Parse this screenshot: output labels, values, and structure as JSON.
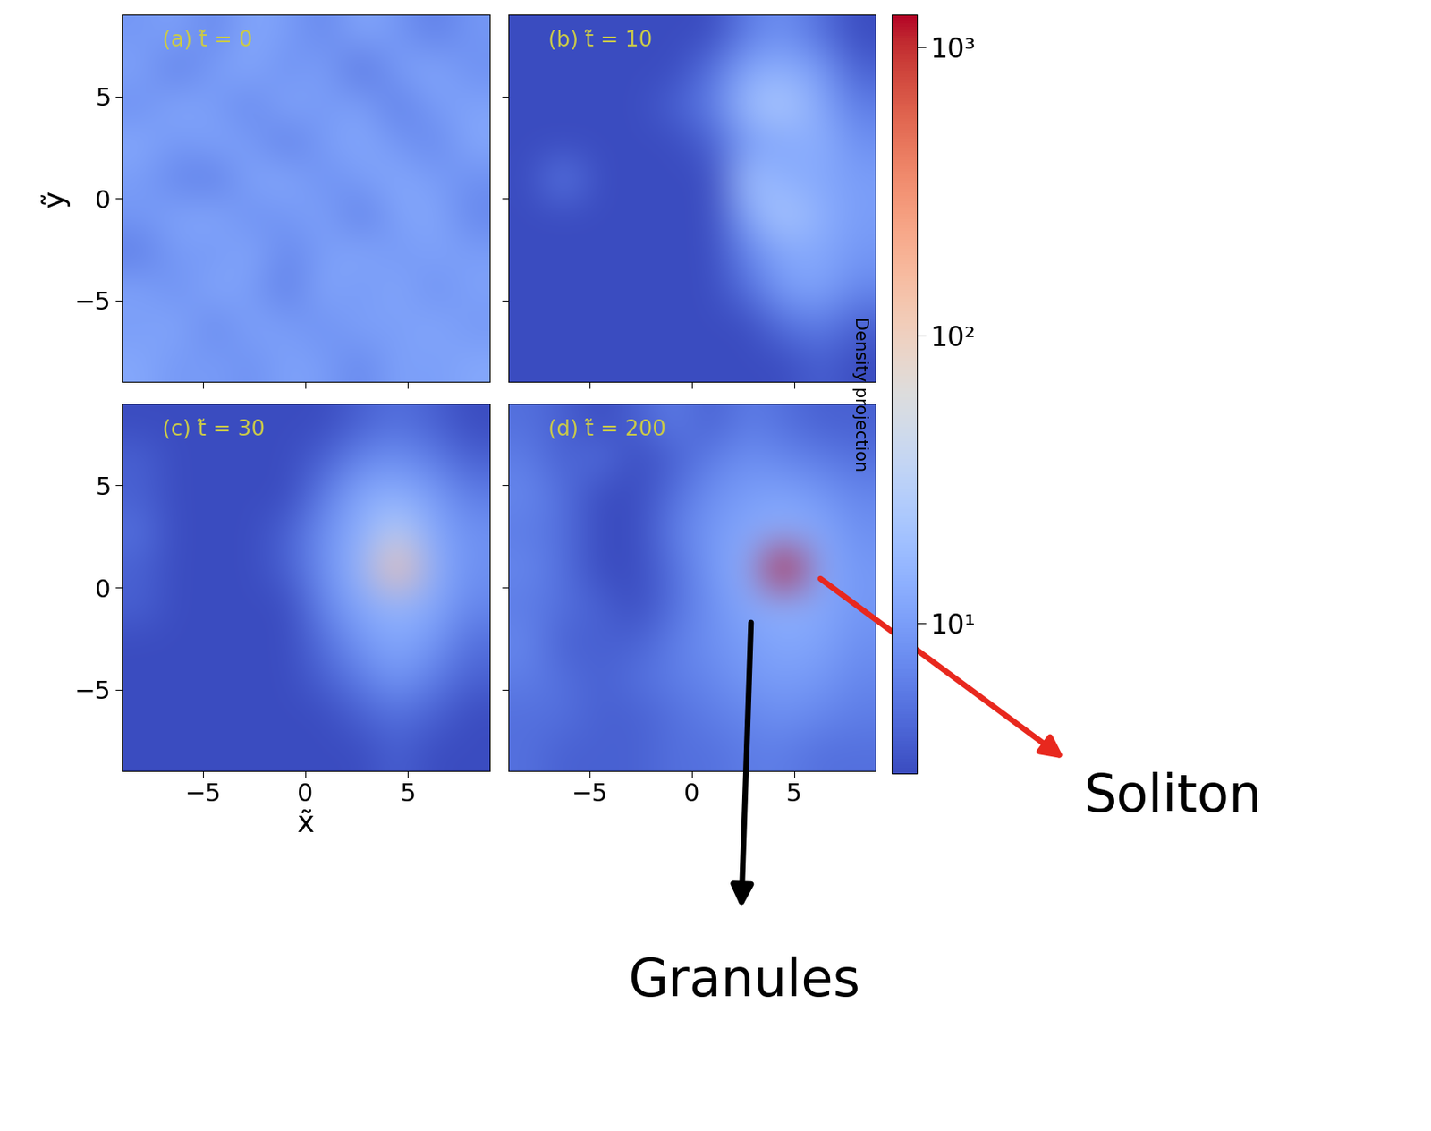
{
  "chart_data": {
    "type": "heatmap",
    "xlabel": "x̃",
    "ylabel": "ỹ",
    "xlim": [
      -9,
      9
    ],
    "ylim": [
      -9,
      9
    ],
    "xticks": [
      {
        "value": -5,
        "label": "−5"
      },
      0,
      5
    ],
    "yticks": [
      {
        "value": -5,
        "label": "−5"
      },
      0,
      5
    ],
    "colorbar_label": "Density projection",
    "colorbar_range": [
      3,
      1300
    ],
    "colorbar_ticks": [
      {
        "value": 10,
        "label": "10¹"
      },
      {
        "value": 100,
        "label": "10²"
      },
      {
        "value": 1000,
        "label": "10³"
      }
    ],
    "panels": [
      {
        "title": "(a) t̃ = 0",
        "cells": [
          [
            9,
            11,
            7,
            12,
            10,
            7,
            12,
            9,
            6,
            9
          ],
          [
            11,
            6,
            10,
            12,
            8,
            11,
            5,
            10,
            12,
            8
          ],
          [
            8,
            12,
            10,
            7,
            12,
            9,
            11,
            6,
            10,
            11
          ],
          [
            12,
            9,
            11,
            10,
            6,
            10,
            12,
            9,
            7,
            12
          ],
          [
            10,
            7,
            6,
            11,
            12,
            8,
            10,
            12,
            10,
            8
          ],
          [
            9,
            11,
            12,
            8,
            9,
            11,
            6,
            11,
            12,
            7
          ],
          [
            6,
            10,
            9,
            12,
            7,
            10,
            12,
            9,
            11,
            10
          ],
          [
            11,
            8,
            12,
            10,
            6,
            12,
            9,
            12,
            8,
            11
          ],
          [
            10,
            12,
            7,
            11,
            10,
            8,
            11,
            10,
            12,
            9
          ],
          [
            12,
            9,
            10,
            8,
            11,
            10,
            7,
            11,
            10,
            12
          ]
        ]
      },
      {
        "title": "(b) t̃ = 10",
        "cells": [
          [
            3,
            3,
            3,
            3,
            3,
            3,
            6,
            8,
            5,
            3
          ],
          [
            3,
            3,
            3,
            3,
            3,
            5,
            12,
            14,
            10,
            4
          ],
          [
            3,
            3,
            3,
            3,
            4,
            6,
            18,
            25,
            12,
            6
          ],
          [
            3,
            3,
            3,
            3,
            3,
            4,
            10,
            12,
            14,
            8
          ],
          [
            3,
            6,
            3,
            3,
            3,
            3,
            20,
            14,
            12,
            10
          ],
          [
            3,
            3,
            3,
            3,
            3,
            3,
            12,
            24,
            14,
            10
          ],
          [
            3,
            3,
            3,
            3,
            3,
            3,
            7,
            12,
            12,
            9
          ],
          [
            3,
            3,
            3,
            3,
            3,
            3,
            5,
            10,
            11,
            7
          ],
          [
            3,
            3,
            3,
            3,
            3,
            3,
            3,
            5,
            6,
            4
          ],
          [
            3,
            3,
            3,
            3,
            3,
            3,
            3,
            3,
            4,
            3
          ]
        ]
      },
      {
        "title": "(c) t̃ = 30",
        "cells": [
          [
            3,
            3,
            3,
            3,
            3,
            3,
            4,
            5,
            4,
            3
          ],
          [
            4,
            3,
            3,
            3,
            3,
            4,
            7,
            8,
            6,
            4
          ],
          [
            4,
            3,
            3,
            3,
            3,
            6,
            12,
            14,
            10,
            6
          ],
          [
            5,
            3,
            3,
            3,
            4,
            8,
            14,
            30,
            12,
            8
          ],
          [
            4,
            3,
            3,
            3,
            4,
            8,
            16,
            150,
            14,
            8
          ],
          [
            4,
            3,
            3,
            3,
            3,
            7,
            12,
            16,
            12,
            7
          ],
          [
            3,
            3,
            3,
            3,
            3,
            5,
            9,
            12,
            9,
            5
          ],
          [
            3,
            3,
            3,
            3,
            3,
            4,
            6,
            9,
            6,
            4
          ],
          [
            3,
            3,
            3,
            3,
            3,
            3,
            4,
            5,
            4,
            3
          ],
          [
            3,
            3,
            3,
            3,
            3,
            3,
            3,
            4,
            3,
            3
          ]
        ]
      },
      {
        "title": "(d) t̃ = 200",
        "cells": [
          [
            5,
            4,
            3,
            4,
            6,
            4,
            6,
            5,
            4,
            4
          ],
          [
            6,
            4,
            5,
            3,
            4,
            6,
            8,
            7,
            6,
            5
          ],
          [
            7,
            5,
            3,
            3,
            5,
            8,
            10,
            11,
            9,
            7
          ],
          [
            6,
            5,
            3,
            3,
            6,
            9,
            12,
            14,
            12,
            8
          ],
          [
            7,
            5,
            3,
            3,
            5,
            9,
            14,
            1200,
            13,
            9
          ],
          [
            6,
            5,
            4,
            3,
            5,
            8,
            12,
            14,
            12,
            9
          ],
          [
            7,
            4,
            4,
            4,
            6,
            8,
            10,
            12,
            11,
            8
          ],
          [
            6,
            5,
            4,
            5,
            6,
            7,
            9,
            10,
            9,
            7
          ],
          [
            5,
            5,
            4,
            4,
            5,
            6,
            7,
            8,
            7,
            6
          ],
          [
            5,
            4,
            4,
            4,
            5,
            5,
            6,
            6,
            5,
            5
          ]
        ],
        "annotations": [
          {
            "text": "Soliton",
            "x": 6.2,
            "y": 0.5,
            "color": "#e8281e"
          },
          {
            "text": "Granules",
            "x": 2.9,
            "y": -1.6,
            "color": "#000000"
          }
        ]
      }
    ]
  }
}
